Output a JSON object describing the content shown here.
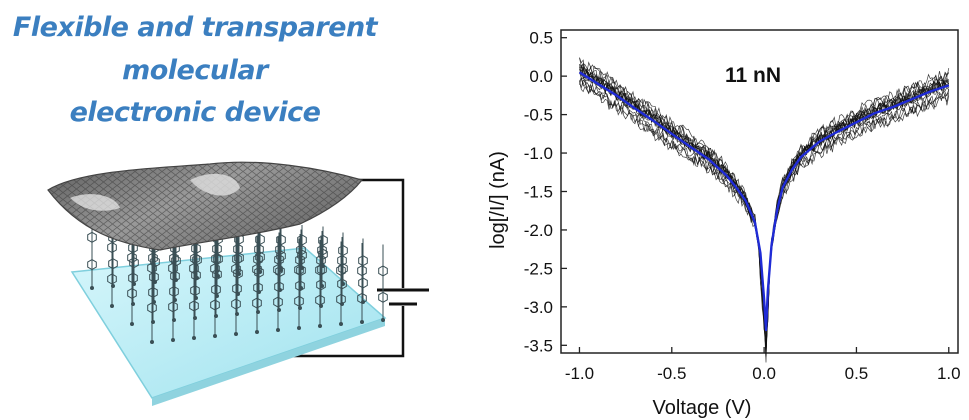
{
  "figure": {
    "title_lines": [
      "Flexible and transparent",
      "molecular",
      "electronic device"
    ]
  },
  "colors": {
    "title": "#3b7fc0",
    "substrate": "#b9ecf4",
    "mean_curve": "#1f2bd6",
    "trace": "#111111"
  },
  "chart_data": {
    "type": "line",
    "xlabel": "Voltage (V)",
    "ylabel": "log[/I/] (nA)",
    "annotation": "11 nN",
    "xlim": [
      -1.1,
      1.05
    ],
    "ylim": [
      -3.6,
      0.6
    ],
    "xticks": [
      "-1.0",
      "-0.5",
      "0.0",
      "0.5",
      "1.0"
    ],
    "yticks": [
      "0.5",
      "0.0",
      "-0.5",
      "-1.0",
      "-1.5",
      "-2.0",
      "-2.5",
      "-3.0",
      "-3.5"
    ],
    "grid": false,
    "series": [
      {
        "role": "mean",
        "x": [
          -1.0,
          -0.9,
          -0.8,
          -0.7,
          -0.6,
          -0.5,
          -0.4,
          -0.3,
          -0.2,
          -0.15,
          -0.1,
          -0.05,
          -0.02,
          0.0,
          0.01,
          0.02,
          0.04,
          0.07,
          0.1,
          0.15,
          0.2,
          0.3,
          0.4,
          0.5,
          0.6,
          0.7,
          0.8,
          0.9,
          1.0
        ],
        "y": [
          0.05,
          -0.1,
          -0.25,
          -0.42,
          -0.58,
          -0.75,
          -0.92,
          -1.08,
          -1.3,
          -1.45,
          -1.62,
          -1.9,
          -2.3,
          -2.9,
          -3.3,
          -2.8,
          -2.2,
          -1.75,
          -1.45,
          -1.22,
          -1.05,
          -0.85,
          -0.72,
          -0.6,
          -0.48,
          -0.4,
          -0.3,
          -0.2,
          -0.12
        ]
      }
    ]
  }
}
